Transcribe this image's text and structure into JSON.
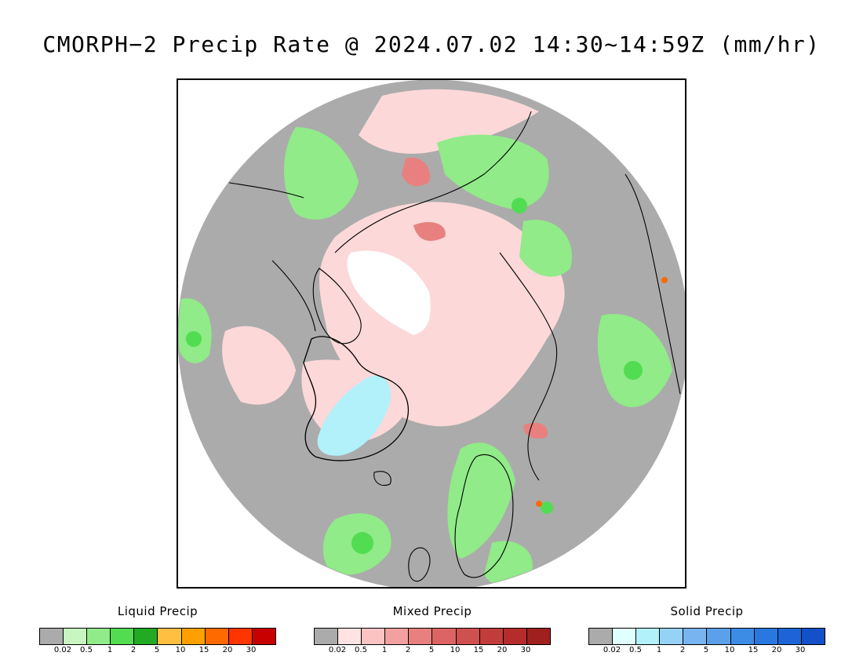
{
  "title": "CMORPH−2 Precip Rate @ 2024.07.02 14:30~14:59Z (mm/hr)",
  "map": {
    "projection": "north-polar-stereographic",
    "background_color": "#ababab",
    "coastline_color": "#000000"
  },
  "legends": [
    {
      "title": "Liquid Precip",
      "colors": [
        "#ababab",
        "#c8f5c0",
        "#90eb88",
        "#52dc52",
        "#23aa23",
        "#ffc042",
        "#ffa000",
        "#ff6a00",
        "#ff3500",
        "#c80000"
      ],
      "ticks": [
        "0.02",
        "0.5",
        "1",
        "2",
        "5",
        "10",
        "15",
        "20",
        "30"
      ]
    },
    {
      "title": "Mixed Precip",
      "colors": [
        "#ababab",
        "#ffe3e3",
        "#fcc3c3",
        "#f2a0a0",
        "#e88080",
        "#dd6464",
        "#d05050",
        "#c23c3c",
        "#b52c2c",
        "#a02020"
      ],
      "ticks": [
        "0.02",
        "0.5",
        "1",
        "2",
        "5",
        "10",
        "15",
        "20",
        "30"
      ]
    },
    {
      "title": "Solid Precip",
      "colors": [
        "#ababab",
        "#e0ffff",
        "#b2f0fa",
        "#96d2f5",
        "#78b4f0",
        "#5aa0eb",
        "#3c8ce6",
        "#2878e0",
        "#1e64d8",
        "#1450c8"
      ],
      "ticks": [
        "0.02",
        "0.5",
        "1",
        "2",
        "5",
        "10",
        "15",
        "20",
        "30"
      ]
    }
  ]
}
